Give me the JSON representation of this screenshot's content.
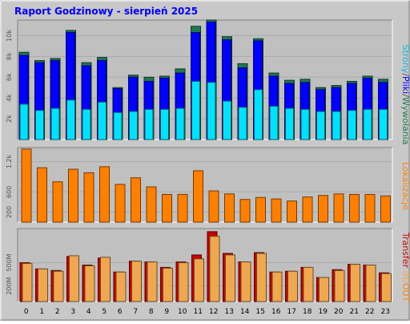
{
  "title": "Raport Godzinowy -   sierpień 2025",
  "colors": {
    "frame_bg": "#c8c8c8",
    "plot_bg": "#c0c0c0",
    "title": "#0000ff",
    "hits": "#207850",
    "files": "#0000ff",
    "pages": "#00e0ff",
    "sites": "#ff8000",
    "kb_in": "#cc0000",
    "kb_out": "#f0a850"
  },
  "right_labels": {
    "panel1": [
      {
        "text": "Strony",
        "color": "#00bbdd"
      },
      {
        "text": "/",
        "color": "#555555"
      },
      {
        "text": "Pliki",
        "color": "#0000ff"
      },
      {
        "text": "/",
        "color": "#555555"
      },
      {
        "text": "Wywołania",
        "color": "#207850"
      }
    ],
    "panel2": [
      {
        "text": "Lokalizacje",
        "color": "#ff8000"
      }
    ],
    "panel3": [
      {
        "text": "Transfer",
        "color": "#cc0000"
      },
      {
        "text": " IN/",
        "color": "#f0a850"
      },
      {
        "text": "OUT",
        "color": "#ff8000"
      }
    ]
  },
  "chart_data": [
    {
      "type": "bar",
      "panel": "hits",
      "categories": [
        "0",
        "1",
        "2",
        "3",
        "4",
        "5",
        "6",
        "7",
        "8",
        "9",
        "10",
        "11",
        "12",
        "13",
        "14",
        "15",
        "16",
        "17",
        "18",
        "19",
        "20",
        "21",
        "22",
        "23"
      ],
      "yticks": [
        "2k",
        "4k",
        "6k",
        "8k",
        "10k"
      ],
      "ylim": [
        0,
        11500
      ],
      "series": [
        {
          "name": "Wywołania",
          "values": [
            8400,
            7600,
            7800,
            10500,
            7400,
            7900,
            5000,
            6200,
            6000,
            6100,
            6800,
            10900,
            11500,
            9900,
            7300,
            9700,
            6400,
            5700,
            5800,
            5000,
            5200,
            5600,
            6100,
            5800
          ]
        },
        {
          "name": "Pliki",
          "values": [
            8100,
            7400,
            7600,
            10300,
            7100,
            7600,
            4900,
            6000,
            5600,
            5900,
            6400,
            10300,
            11300,
            9600,
            6900,
            9500,
            6100,
            5400,
            5500,
            4800,
            5000,
            5400,
            5900,
            5500
          ]
        },
        {
          "name": "Strony",
          "values": [
            3400,
            2800,
            3000,
            3800,
            2900,
            3600,
            2600,
            2700,
            2900,
            2900,
            3000,
            5600,
            5500,
            3700,
            3100,
            4800,
            3200,
            3000,
            2900,
            2700,
            2700,
            2800,
            2900,
            2900
          ]
        }
      ]
    },
    {
      "type": "bar",
      "panel": "sites",
      "categories": [
        "0",
        "1",
        "2",
        "3",
        "4",
        "5",
        "6",
        "7",
        "8",
        "9",
        "10",
        "11",
        "12",
        "13",
        "14",
        "15",
        "16",
        "17",
        "18",
        "19",
        "20",
        "21",
        "22",
        "23"
      ],
      "yticks": [
        "200",
        "600",
        "1.2k"
      ],
      "ylim": [
        0,
        1480
      ],
      "series": [
        {
          "name": "Lokalizacje",
          "values": [
            1450,
            1080,
            800,
            1050,
            980,
            1100,
            750,
            880,
            700,
            550,
            550,
            1020,
            620,
            560,
            450,
            490,
            460,
            420,
            500,
            530,
            560,
            550,
            550,
            520
          ]
        }
      ]
    },
    {
      "type": "bar",
      "panel": "transfer",
      "categories": [
        "0",
        "1",
        "2",
        "3",
        "4",
        "5",
        "6",
        "7",
        "8",
        "9",
        "10",
        "11",
        "12",
        "13",
        "14",
        "15",
        "16",
        "17",
        "18",
        "19",
        "20",
        "21",
        "22",
        "23"
      ],
      "yticks": [
        "200M",
        "500M"
      ],
      "ylim": [
        0,
        940
      ],
      "series": [
        {
          "name": "IN",
          "values": [
            500,
            420,
            400,
            580,
            470,
            560,
            380,
            520,
            510,
            440,
            510,
            600,
            900,
            620,
            510,
            630,
            380,
            390,
            440,
            310,
            410,
            480,
            470,
            370
          ]
        },
        {
          "name": "OUT",
          "values": [
            490,
            420,
            390,
            590,
            460,
            570,
            380,
            520,
            510,
            430,
            500,
            550,
            840,
            600,
            510,
            620,
            380,
            390,
            440,
            310,
            400,
            480,
            470,
            360
          ]
        }
      ]
    }
  ]
}
